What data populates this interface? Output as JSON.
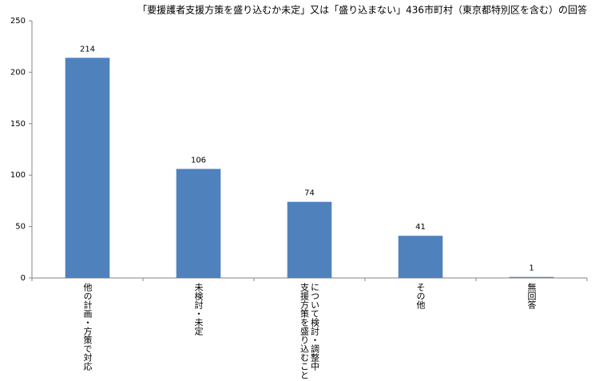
{
  "chart_data": {
    "type": "bar",
    "title": "「要援護者支援方策を盛り込むか未定」又は「盛り込まない」436市町村（東京都特別区を含む）の回答",
    "categories": [
      "他の計画・方策で対応",
      "未検討・未定",
      "支援方策を盛り込むことについて検討・調整中",
      "その他",
      "無回答"
    ],
    "values": [
      214,
      106,
      74,
      41,
      1
    ],
    "color": "#4f81bd",
    "ylim": [
      0,
      250
    ],
    "yticks": [
      0,
      50,
      100,
      150,
      200,
      250
    ],
    "grid": false
  }
}
